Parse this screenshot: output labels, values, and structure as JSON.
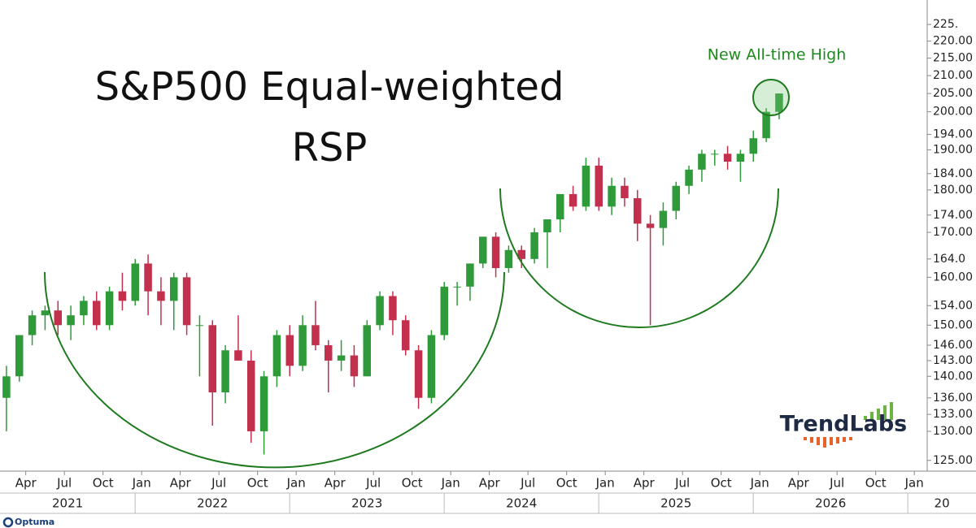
{
  "chart_data": {
    "type": "candlestick",
    "title": "S&P500 Equal-weighted",
    "subtitle": "RSP",
    "annotation": "New All-time High",
    "brand": "TrendLabs",
    "footer": "Optuma",
    "log_scale": true,
    "up_color": "#2f9a3a",
    "down_color": "#c3304d",
    "x": [
      "2021-02",
      "2021-03",
      "2021-04",
      "2021-05",
      "2021-06",
      "2021-07",
      "2021-08",
      "2021-09",
      "2021-10",
      "2021-11",
      "2021-12",
      "2022-01",
      "2022-02",
      "2022-03",
      "2022-04",
      "2022-05",
      "2022-06",
      "2022-07",
      "2022-08",
      "2022-09",
      "2022-10",
      "2022-11",
      "2022-12",
      "2023-01",
      "2023-02",
      "2023-03",
      "2023-04",
      "2023-05",
      "2023-06",
      "2023-07",
      "2023-08",
      "2023-09",
      "2023-10",
      "2023-11",
      "2023-12",
      "2024-01",
      "2024-02",
      "2024-03",
      "2024-04",
      "2024-05",
      "2024-06",
      "2024-07",
      "2024-08",
      "2024-09",
      "2024-10",
      "2024-11",
      "2024-12",
      "2025-01",
      "2025-02",
      "2025-03",
      "2025-04",
      "2025-05",
      "2025-06",
      "2025-07",
      "2025-08",
      "2025-09",
      "2025-10",
      "2025-11",
      "2025-12",
      "2026-01",
      "2026-02"
    ],
    "open": [
      136,
      140,
      148,
      152,
      153,
      150,
      152,
      155,
      150,
      157,
      155,
      163,
      157,
      155,
      160,
      150,
      150,
      137,
      145,
      143,
      130,
      140,
      148,
      142,
      150,
      146,
      143,
      144,
      140,
      150,
      156,
      151,
      145,
      136,
      148,
      158,
      158,
      163,
      169,
      162,
      166,
      164,
      170,
      173,
      179,
      176,
      186,
      176,
      181,
      178,
      172,
      171,
      175,
      181,
      185,
      189,
      189,
      187,
      189,
      193,
      200
    ],
    "high": [
      142,
      148,
      153,
      154,
      155,
      154,
      156,
      157,
      158,
      161,
      164,
      165,
      160,
      161,
      161,
      152,
      151,
      146,
      152,
      145,
      141,
      149,
      150,
      152,
      155,
      147,
      147,
      146,
      151,
      157,
      157,
      152,
      146,
      149,
      159,
      159,
      163,
      169,
      170,
      167,
      167,
      171,
      173,
      179,
      181,
      188,
      188,
      183,
      183,
      180,
      174,
      177,
      182,
      186,
      190,
      190,
      191,
      190,
      195,
      201,
      205
    ],
    "low": [
      130,
      139,
      146,
      149,
      148,
      147,
      150,
      149,
      149,
      153,
      154,
      152,
      150,
      149,
      148,
      140,
      131,
      135,
      143,
      128,
      126,
      138,
      140,
      141,
      145,
      137,
      141,
      138,
      140,
      149,
      148,
      144,
      134,
      135,
      147,
      154,
      155,
      162,
      160,
      161,
      162,
      163,
      162,
      170,
      175,
      175,
      175,
      174,
      176,
      168,
      150,
      167,
      173,
      179,
      182,
      186,
      185,
      182,
      187,
      192,
      198
    ],
    "close": [
      140,
      148,
      152,
      153,
      150,
      152,
      155,
      150,
      157,
      155,
      163,
      157,
      155,
      160,
      150,
      150,
      137,
      145,
      143,
      130,
      140,
      148,
      142,
      150,
      146,
      143,
      144,
      140,
      150,
      156,
      151,
      145,
      136,
      148,
      158,
      158,
      163,
      169,
      162,
      166,
      164,
      170,
      173,
      179,
      176,
      186,
      176,
      181,
      178,
      172,
      171,
      175,
      181,
      185,
      189,
      189,
      187,
      189,
      193,
      200,
      205
    ],
    "xlim": [
      "2021-02",
      "2027-02"
    ],
    "xticks": [
      {
        "value": "2021-04",
        "label": "Apr"
      },
      {
        "value": "2021-07",
        "label": "Jul"
      },
      {
        "value": "2021-10",
        "label": "Oct"
      },
      {
        "value": "2022-01",
        "label": "Jan"
      },
      {
        "value": "2022-04",
        "label": "Apr"
      },
      {
        "value": "2022-07",
        "label": "Jul"
      },
      {
        "value": "2022-10",
        "label": "Oct"
      },
      {
        "value": "2023-01",
        "label": "Jan"
      },
      {
        "value": "2023-04",
        "label": "Apr"
      },
      {
        "value": "2023-07",
        "label": "Jul"
      },
      {
        "value": "2023-10",
        "label": "Oct"
      },
      {
        "value": "2024-01",
        "label": "Jan"
      },
      {
        "value": "2024-04",
        "label": "Apr"
      },
      {
        "value": "2024-07",
        "label": "Jul"
      },
      {
        "value": "2024-10",
        "label": "Oct"
      },
      {
        "value": "2025-01",
        "label": "Jan"
      },
      {
        "value": "2025-04",
        "label": "Apr"
      },
      {
        "value": "2025-07",
        "label": "Jul"
      },
      {
        "value": "2025-10",
        "label": "Oct"
      },
      {
        "value": "2026-01",
        "label": "Jan"
      },
      {
        "value": "2026-04",
        "label": "Apr"
      },
      {
        "value": "2026-07",
        "label": "Jul"
      },
      {
        "value": "2026-10",
        "label": "Oct"
      },
      {
        "value": "2027-01",
        "label": "Jan"
      }
    ],
    "years": [
      2021,
      2022,
      2023,
      2024,
      2025,
      2026,
      {
        "value": 2027,
        "label": "20"
      }
    ],
    "ylim": [
      123.2,
      228
    ],
    "yticks": [
      {
        "value": 125,
        "label": "125.00"
      },
      {
        "value": 130,
        "label": "130.00"
      },
      {
        "value": 133,
        "label": "133.00"
      },
      {
        "value": 136,
        "label": "136.00"
      },
      {
        "value": 140,
        "label": "140.00"
      },
      {
        "value": 143,
        "label": "143.00"
      },
      {
        "value": 146,
        "label": "146.00"
      },
      {
        "value": 150,
        "label": "150.00"
      },
      {
        "value": 154,
        "label": "154.00"
      },
      {
        "value": 160,
        "label": "160.00"
      },
      {
        "value": 164,
        "label": "164.0"
      },
      {
        "value": 170,
        "label": "170.00"
      },
      {
        "value": 174,
        "label": "174.00"
      },
      {
        "value": 180,
        "label": "180.00"
      },
      {
        "value": 184,
        "label": "184.00"
      },
      {
        "value": 190,
        "label": "190.00"
      },
      {
        "value": 194,
        "label": "194.00"
      },
      {
        "value": 200,
        "label": "200.00"
      },
      {
        "value": 205,
        "label": "205.00"
      },
      {
        "value": 210,
        "label": "210.00"
      },
      {
        "value": 215,
        "label": "215.00"
      },
      {
        "value": 220,
        "label": "220.00"
      },
      {
        "value": 225,
        "label": "225."
      }
    ]
  }
}
